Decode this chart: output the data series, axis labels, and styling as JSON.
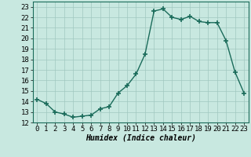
{
  "x": [
    0,
    1,
    2,
    3,
    4,
    5,
    6,
    7,
    8,
    9,
    10,
    11,
    12,
    13,
    14,
    15,
    16,
    17,
    18,
    19,
    20,
    21,
    22,
    23
  ],
  "y": [
    14.2,
    13.8,
    13.0,
    12.8,
    12.5,
    12.6,
    12.7,
    13.3,
    13.5,
    14.8,
    15.5,
    16.6,
    18.5,
    22.6,
    22.8,
    22.0,
    21.8,
    22.1,
    21.6,
    21.5,
    21.5,
    19.8,
    16.8,
    14.8
  ],
  "line_color": "#1a6b5a",
  "marker": "+",
  "markersize": 4,
  "linewidth": 1.0,
  "bg_color": "#c8e8e0",
  "grid_color": "#a0c8c0",
  "xlabel": "Humidex (Indice chaleur)",
  "xlabel_fontsize": 7,
  "yticks": [
    12,
    13,
    14,
    15,
    16,
    17,
    18,
    19,
    20,
    21,
    22,
    23
  ],
  "xticks": [
    0,
    1,
    2,
    3,
    4,
    5,
    6,
    7,
    8,
    9,
    10,
    11,
    12,
    13,
    14,
    15,
    16,
    17,
    18,
    19,
    20,
    21,
    22,
    23
  ],
  "xlim": [
    -0.5,
    23.5
  ],
  "ylim": [
    12,
    23.5
  ],
  "tick_fontsize": 6.5
}
